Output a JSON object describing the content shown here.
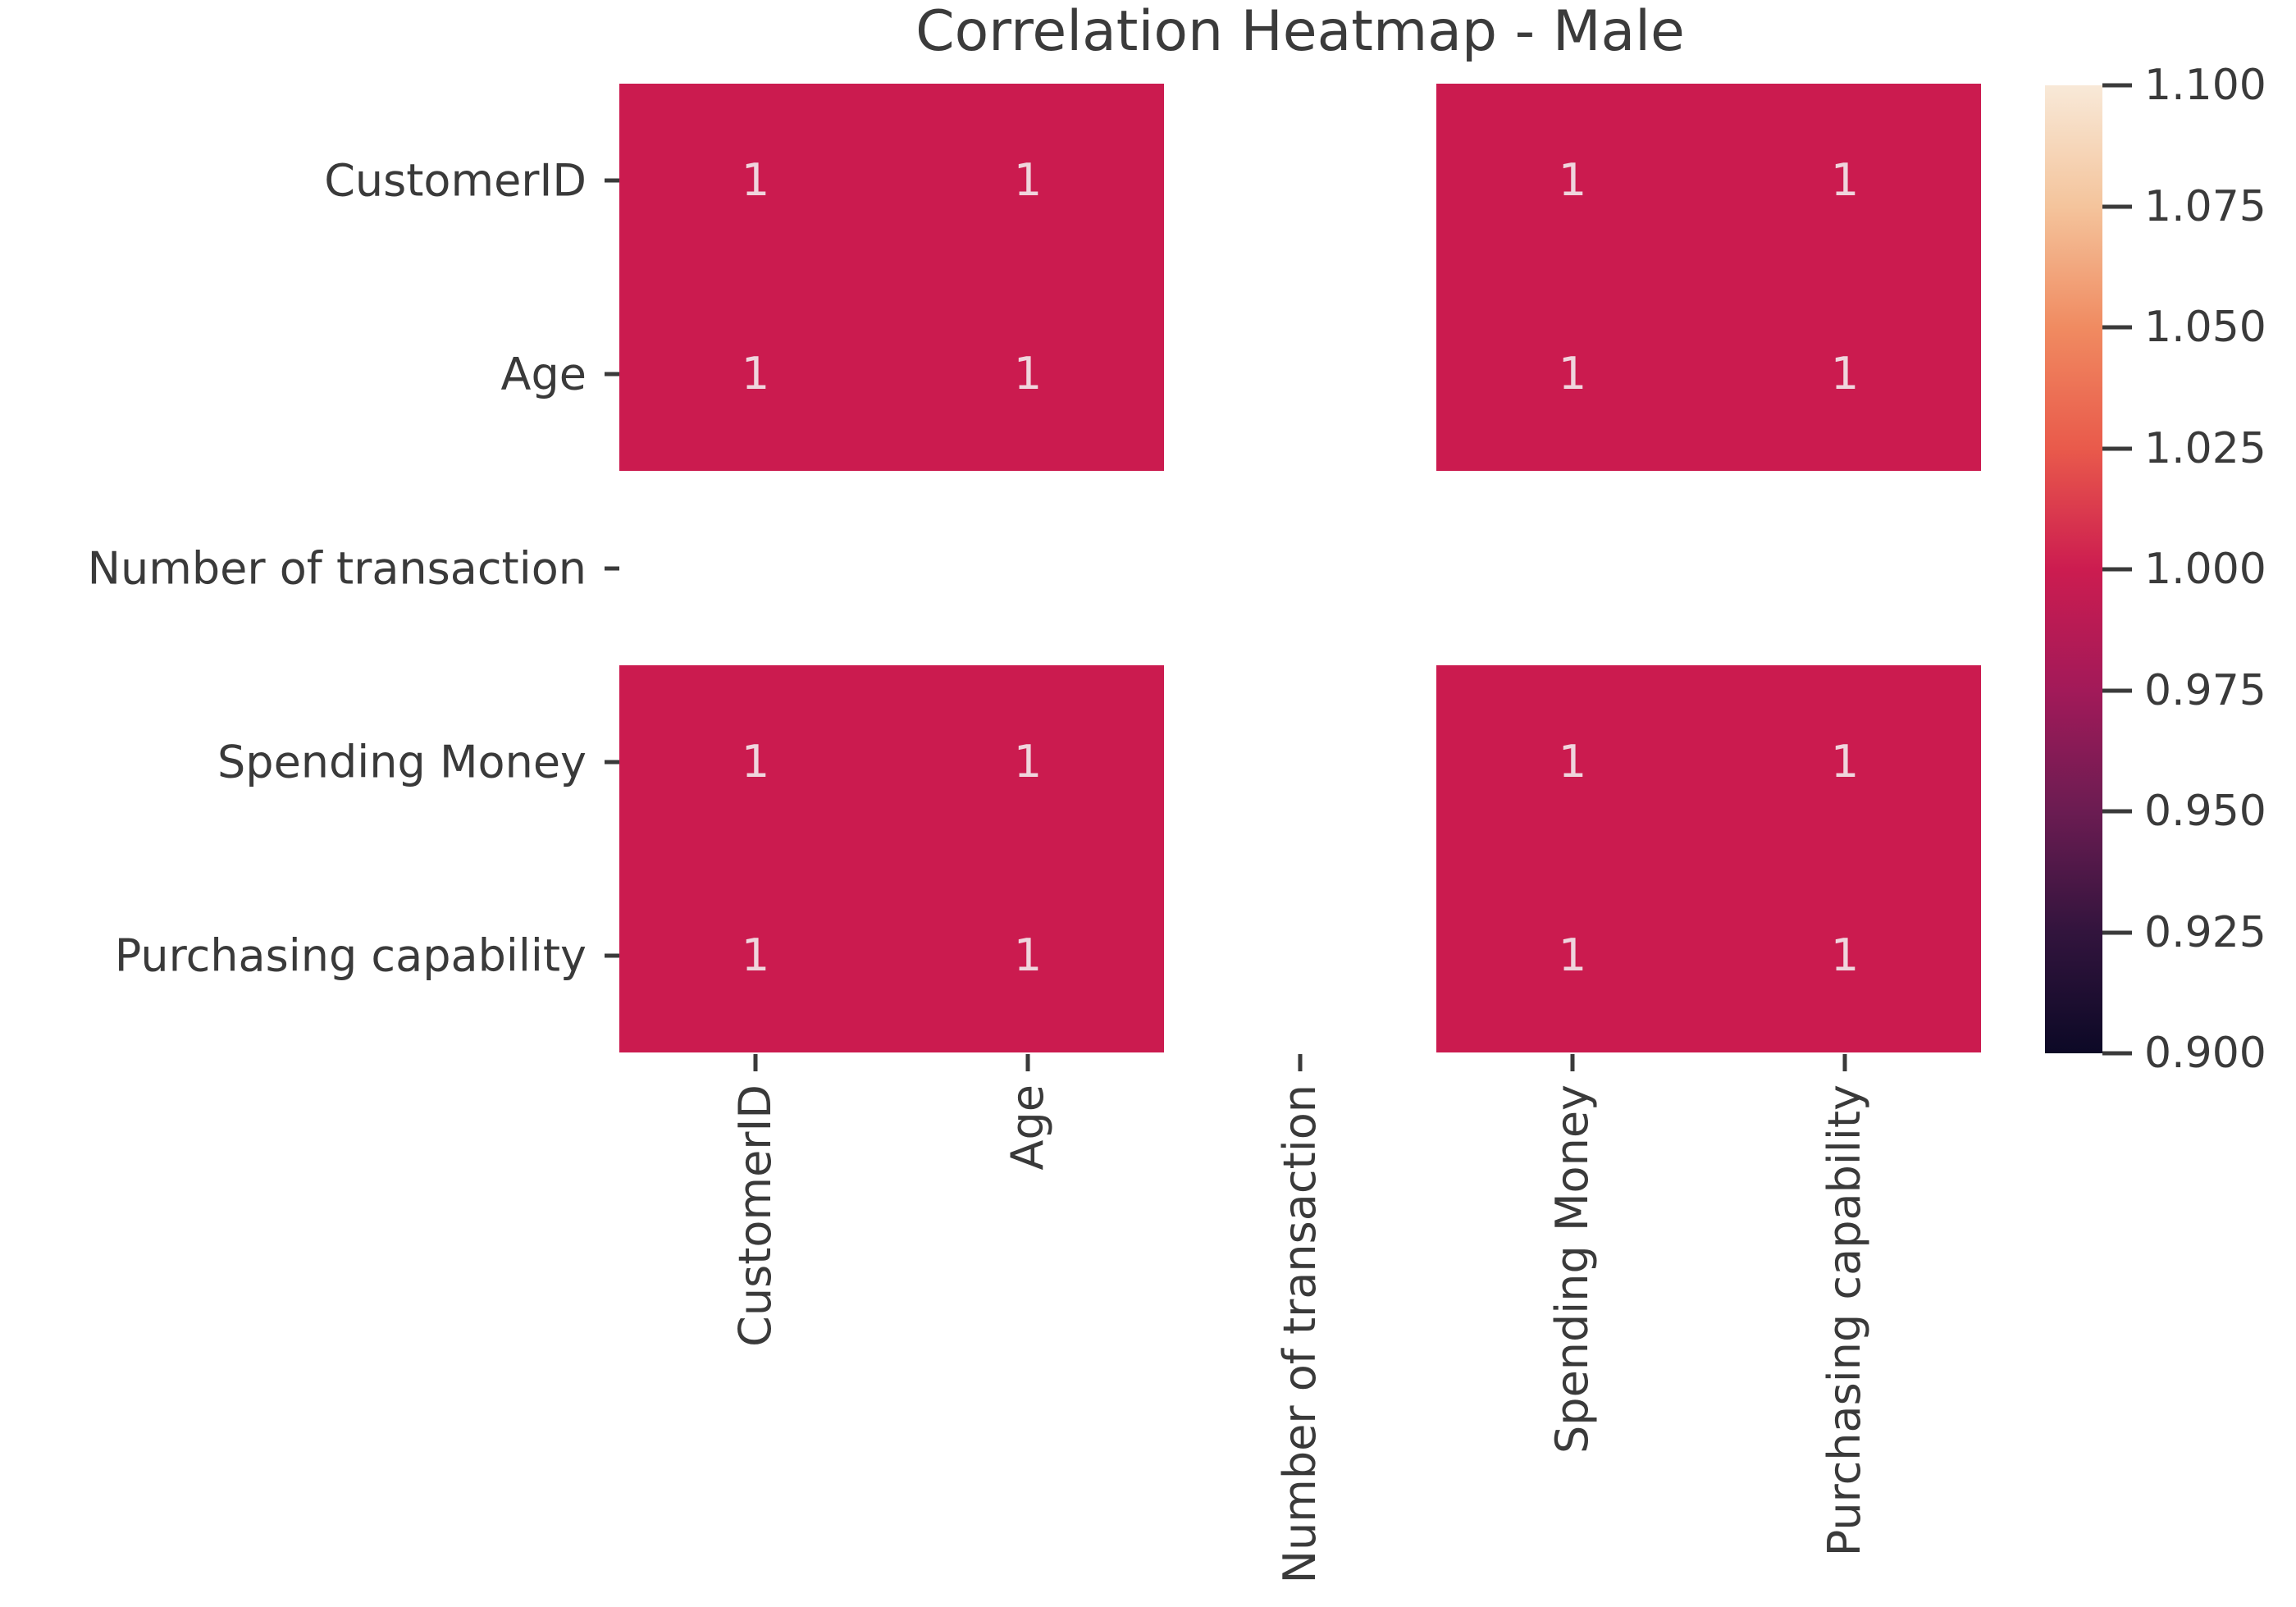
{
  "chart_data": {
    "type": "heatmap",
    "title": "Correlation Heatmap - Male",
    "categories": [
      "CustomerID",
      "Age",
      "Number of transaction",
      "Spending Money",
      "Purchasing capability"
    ],
    "matrix": [
      [
        1,
        1,
        null,
        1,
        1
      ],
      [
        1,
        1,
        null,
        1,
        1
      ],
      [
        null,
        null,
        null,
        null,
        null
      ],
      [
        1,
        1,
        null,
        1,
        1
      ],
      [
        1,
        1,
        null,
        1,
        1
      ]
    ],
    "annotations_shown": true,
    "grid": false,
    "x_tick_rotation_degrees": 90,
    "colorbar": {
      "position": "right",
      "vmin": 0.9,
      "vmax": 1.1,
      "tick_labels": [
        "1.100",
        "1.075",
        "1.050",
        "1.025",
        "1.000",
        "0.975",
        "0.950",
        "0.925",
        "0.900"
      ],
      "colormap": "rocket",
      "gradient_stops": [
        {
          "pos": 0.0,
          "color": "#0c0926"
        },
        {
          "pos": 0.125,
          "color": "#32143d"
        },
        {
          "pos": 0.25,
          "color": "#6b1c52"
        },
        {
          "pos": 0.375,
          "color": "#a21a59"
        },
        {
          "pos": 0.5,
          "color": "#cc1c50"
        },
        {
          "pos": 0.625,
          "color": "#e95a4b"
        },
        {
          "pos": 0.75,
          "color": "#f08b61"
        },
        {
          "pos": 0.875,
          "color": "#f4c49c"
        },
        {
          "pos": 1.0,
          "color": "#f8e9d8"
        }
      ]
    },
    "colors": {
      "cell_value_1": "#cb1b4f",
      "cell_empty": "#ffffff",
      "annotation_text": "#efd5dd",
      "axis_text": "#3a3a3a",
      "title_text": "#3b3b3b",
      "tick_mark": "#3a3a3a",
      "background": "#ffffff"
    }
  }
}
